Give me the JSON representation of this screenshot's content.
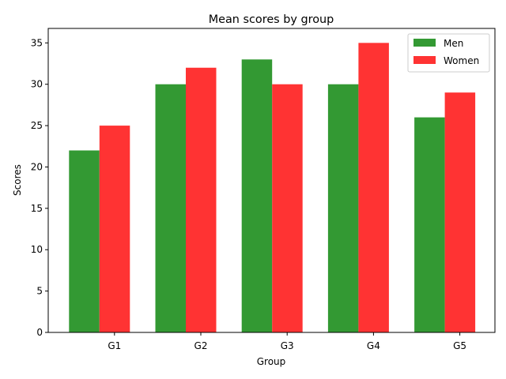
{
  "chart_data": {
    "type": "bar",
    "title": "Mean scores by group",
    "xlabel": "Group",
    "ylabel": "Scores",
    "categories": [
      "G1",
      "G2",
      "G3",
      "G4",
      "G5"
    ],
    "series": [
      {
        "name": "Men",
        "values": [
          22,
          30,
          33,
          30,
          26
        ],
        "color": "#339933"
      },
      {
        "name": "Women",
        "values": [
          25,
          32,
          30,
          35,
          29
        ],
        "color": "#ff3333"
      }
    ],
    "ylim": [
      0,
      36.75
    ],
    "yticks": [
      0,
      5,
      10,
      15,
      20,
      25,
      30,
      35
    ],
    "grid": false,
    "legend_position": "top-right"
  }
}
